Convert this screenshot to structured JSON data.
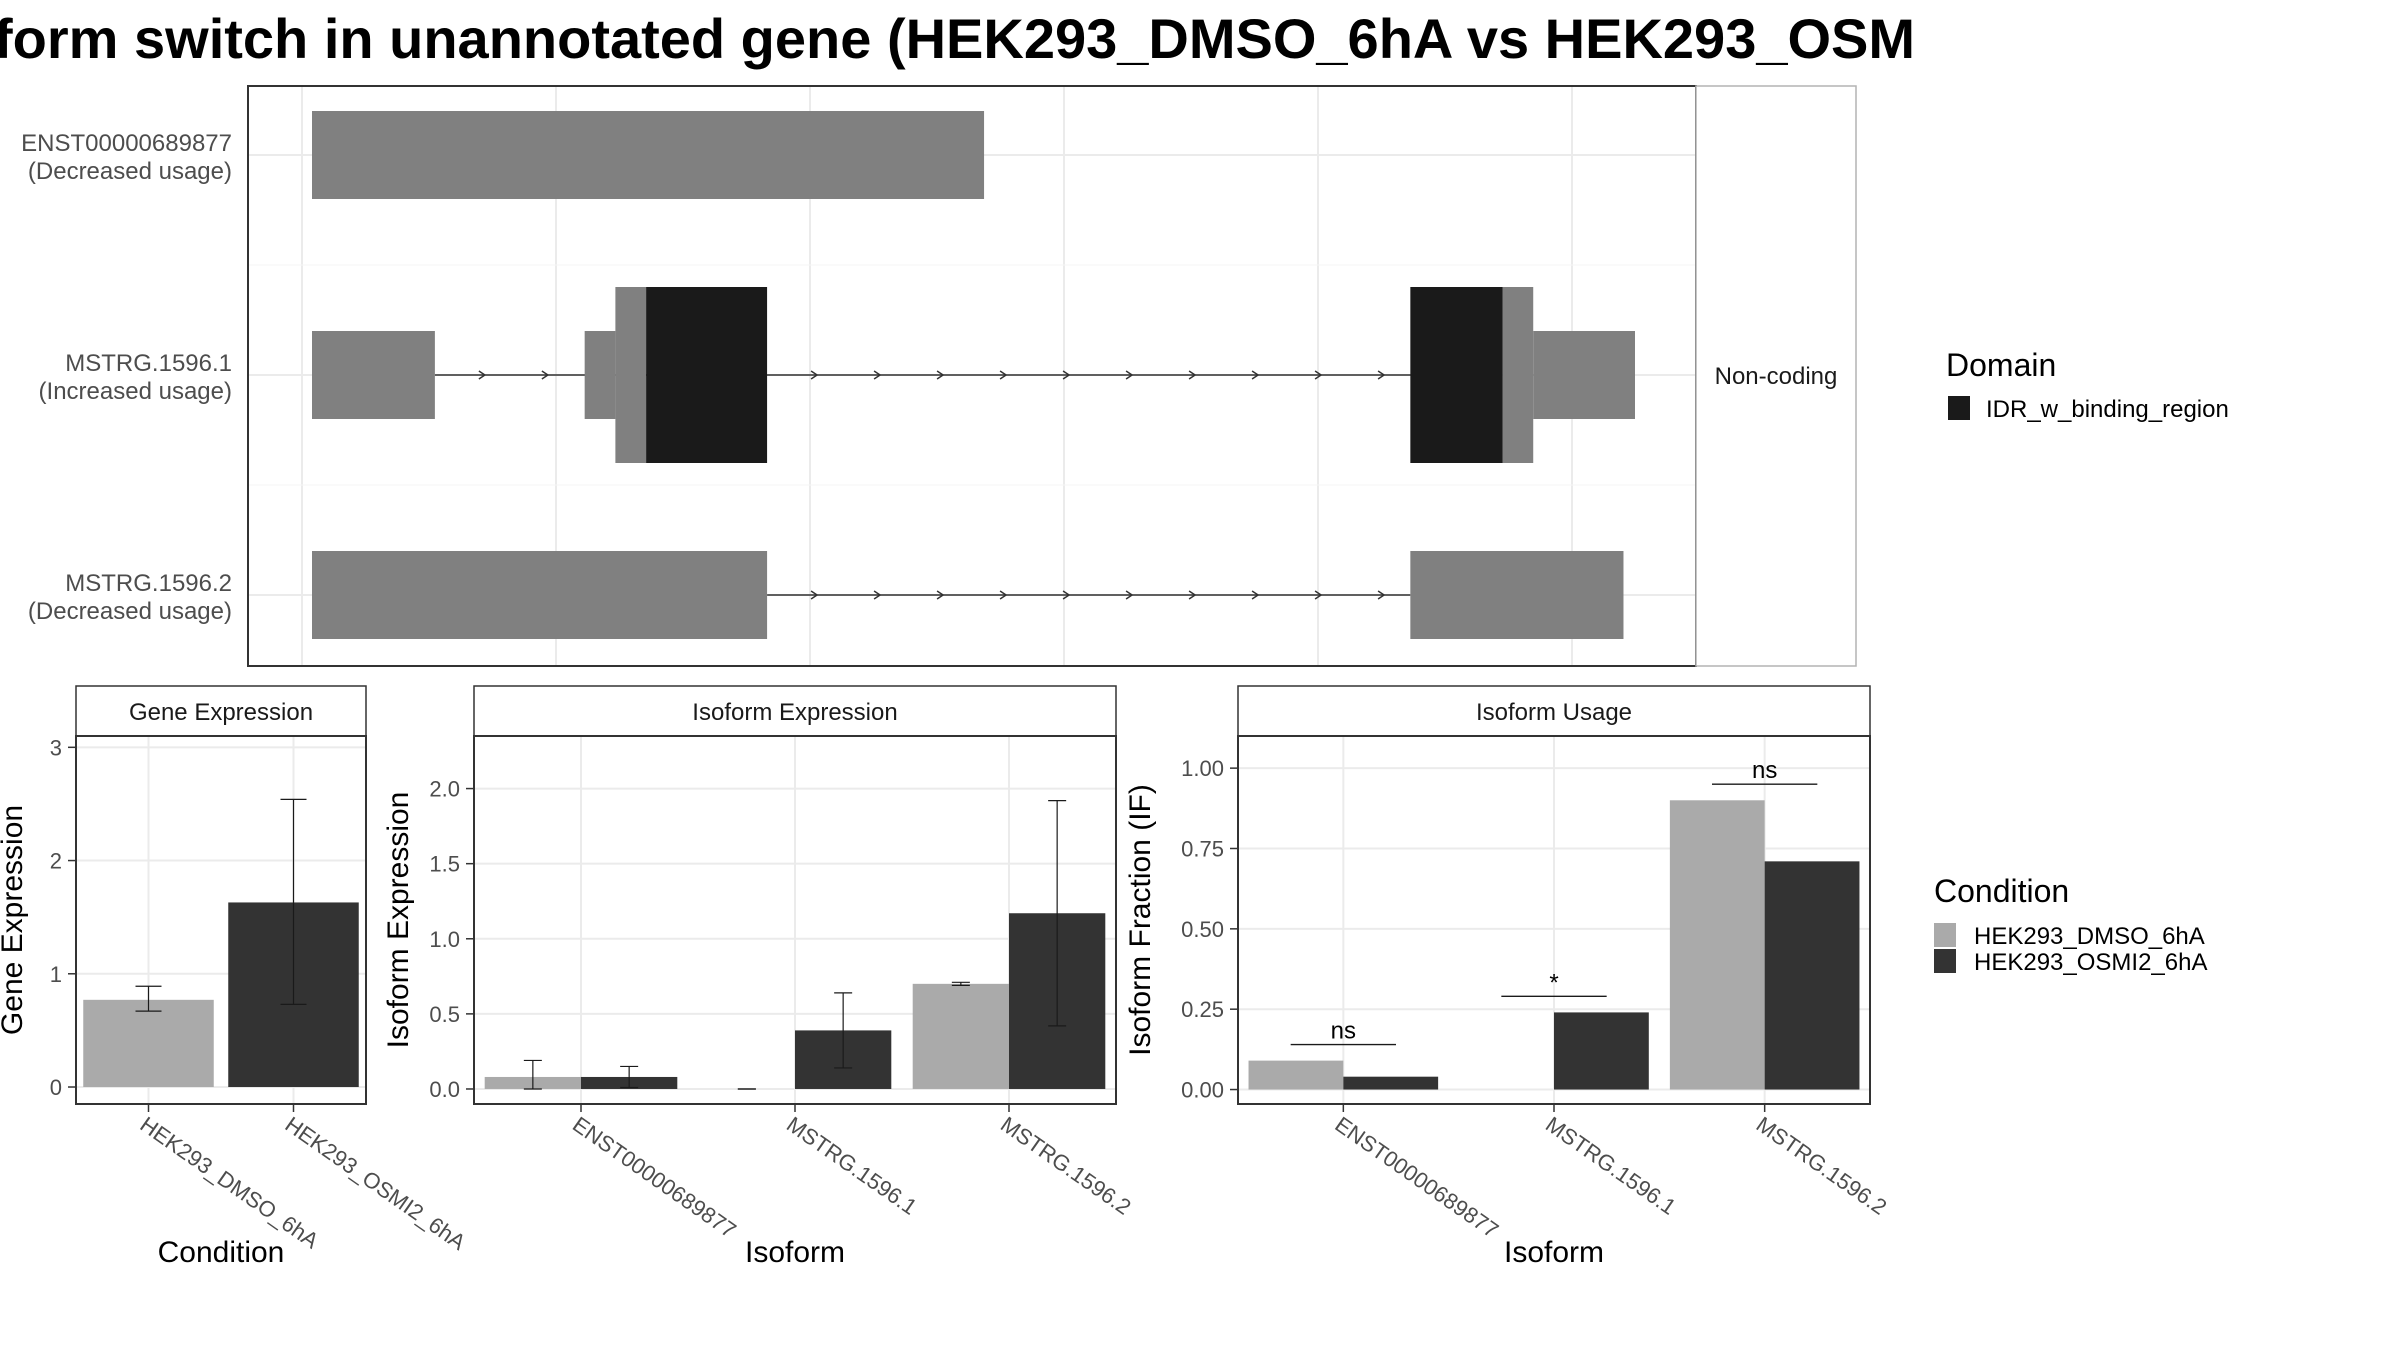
{
  "title": "form switch in unannotated gene (HEK293_DMSO_6hA vs HEK293_OSM",
  "colors": {
    "exon": "#808080",
    "domain": "#1a1a1a",
    "cond1": "#aaaaaa",
    "cond2": "#333333",
    "grid": "#ebebeb",
    "strip_bg": "#ffffff"
  },
  "chart_data": [
    {
      "type": "gene-structure",
      "isoforms": [
        {
          "id": "ENST00000689877",
          "status": "(Decreased usage)",
          "exons": [
            [
              0.0,
              0.35
            ]
          ],
          "domains": []
        },
        {
          "id": "MSTRG.1596.1",
          "status": "(Increased usage)",
          "exons": [
            [
              0.0,
              0.064
            ],
            [
              0.142,
              0.158
            ],
            [
              0.158,
              0.174
            ],
            [
              0.174,
              0.237
            ],
            [
              0.572,
              0.62
            ],
            [
              0.62,
              0.636
            ],
            [
              0.636,
              0.689
            ]
          ],
          "domains": [
            [
              0.174,
              0.237
            ],
            [
              0.572,
              0.62
            ]
          ],
          "tall": [
            [
              0.158,
              0.174
            ],
            [
              0.174,
              0.237
            ],
            [
              0.572,
              0.62
            ],
            [
              0.62,
              0.636
            ]
          ]
        },
        {
          "id": "MSTRG.1596.2",
          "status": "(Decreased usage)",
          "exons": [
            [
              0.0,
              0.237
            ],
            [
              0.572,
              0.683
            ]
          ],
          "domains": []
        }
      ],
      "side_label": "Non-coding",
      "legend": {
        "title": "Domain",
        "items": [
          "IDR_w_binding_region"
        ]
      }
    },
    {
      "type": "bar",
      "strip": "Gene Expression",
      "ylabel": "Gene Expression",
      "xlabel": "Condition",
      "ylim": [
        -0.15,
        3.1
      ],
      "yticks": [
        "0",
        "1",
        "2",
        "3"
      ],
      "categories": [
        "HEK293_DMSO_6hA",
        "HEK293_OSMI2_6hA"
      ],
      "values": [
        0.77,
        1.63
      ],
      "err_low": [
        0.67,
        0.73
      ],
      "err_high": [
        0.89,
        2.54
      ]
    },
    {
      "type": "bar",
      "strip": "Isoform Expression",
      "ylabel": "Isoform Expression",
      "xlabel": "Isoform",
      "ylim": [
        -0.1,
        2.35
      ],
      "yticks": [
        "0.0",
        "0.5",
        "1.0",
        "1.5",
        "2.0"
      ],
      "categories": [
        "ENST00000689877",
        "MSTRG.1596.1",
        "MSTRG.1596.2"
      ],
      "series": [
        {
          "name": "HEK293_DMSO_6hA",
          "values": [
            0.08,
            0.0,
            0.7
          ],
          "err_low": [
            0.0,
            0.0,
            0.69
          ],
          "err_high": [
            0.19,
            0.0,
            0.71
          ]
        },
        {
          "name": "HEK293_OSMI2_6hA",
          "values": [
            0.08,
            0.39,
            1.17
          ],
          "err_low": [
            0.01,
            0.14,
            0.42
          ],
          "err_high": [
            0.15,
            0.64,
            1.92
          ]
        }
      ]
    },
    {
      "type": "bar",
      "strip": "Isoform Usage",
      "ylabel": "Isoform Fraction (IF)",
      "xlabel": "Isoform",
      "ylim": [
        -0.045,
        1.1
      ],
      "yticks": [
        "0.00",
        "0.25",
        "0.50",
        "0.75",
        "1.00"
      ],
      "categories": [
        "ENST00000689877",
        "MSTRG.1596.1",
        "MSTRG.1596.2"
      ],
      "series": [
        {
          "name": "HEK293_DMSO_6hA",
          "values": [
            0.09,
            0.0,
            0.9
          ]
        },
        {
          "name": "HEK293_OSMI2_6hA",
          "values": [
            0.04,
            0.24,
            0.71
          ]
        }
      ],
      "significance": [
        "ns",
        "*",
        "ns"
      ],
      "sig_y": [
        0.14,
        0.29,
        0.95
      ]
    }
  ],
  "legend_condition": {
    "title": "Condition",
    "items": [
      "HEK293_DMSO_6hA",
      "HEK293_OSMI2_6hA"
    ]
  }
}
